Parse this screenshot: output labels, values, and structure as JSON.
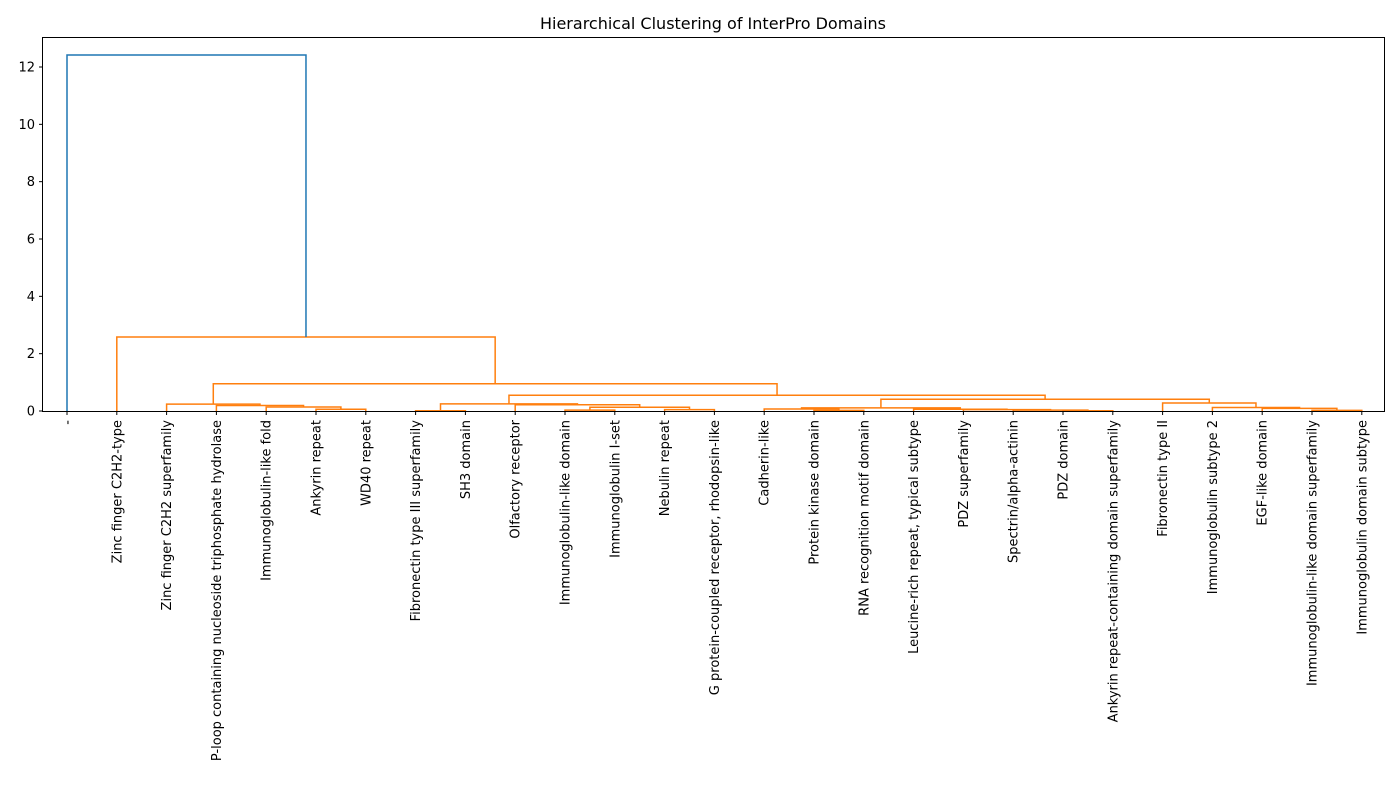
{
  "chart_data": {
    "type": "dendrogram",
    "title": "Hierarchical Clustering of InterPro Domains",
    "xlabel": "",
    "ylabel": "",
    "ylim": [
      0,
      13
    ],
    "y_ticks": [
      0,
      2,
      4,
      6,
      8,
      10,
      12
    ],
    "grid": false,
    "colors": {
      "root": "#1f77b4",
      "cluster": "#ff7f0e"
    },
    "leaves": [
      "-",
      "Zinc finger C2H2-type",
      "Zinc finger C2H2 superfamily",
      "P-loop containing nucleoside triphosphate hydrolase",
      "Immunoglobulin-like fold",
      "Ankyrin repeat",
      "WD40 repeat",
      "Fibronectin type III superfamily",
      "SH3 domain",
      "Olfactory receptor",
      "Immunoglobulin-like domain",
      "Immunoglobulin I-set",
      "Nebulin repeat",
      "G protein-coupled receptor, rhodopsin-like",
      "Cadherin-like",
      "Protein kinase domain",
      "RNA recognition motif domain",
      "Leucine-rich repeat, typical subtype",
      "PDZ superfamily",
      "Spectrin/alpha-actinin",
      "PDZ domain",
      "Ankyrin repeat-containing domain superfamily",
      "Fibronectin type II",
      "Immunoglobulin subtype 2",
      "EGF-like domain",
      "Immunoglobulin-like domain superfamily",
      "Immunoglobulin domain subtype"
    ],
    "merges": [
      {
        "left": "L5",
        "right": "L6",
        "height": 0.06,
        "color": "cluster"
      },
      {
        "left": "L4",
        "right": "M0",
        "height": 0.14,
        "color": "cluster"
      },
      {
        "left": "L3",
        "right": "M1",
        "height": 0.19,
        "color": "cluster"
      },
      {
        "left": "L2",
        "right": "M2",
        "height": 0.24,
        "color": "cluster"
      },
      {
        "left": "L7",
        "right": "L8",
        "height": 0.01,
        "color": "cluster"
      },
      {
        "left": "L10",
        "right": "L11",
        "height": 0.03,
        "color": "cluster"
      },
      {
        "left": "L12",
        "right": "L13",
        "height": 0.05,
        "color": "cluster"
      },
      {
        "left": "M5",
        "right": "M6",
        "height": 0.13,
        "color": "cluster"
      },
      {
        "left": "L9",
        "right": "M7",
        "height": 0.22,
        "color": "cluster"
      },
      {
        "left": "M4",
        "right": "M8",
        "height": 0.25,
        "color": "cluster"
      },
      {
        "left": "L15",
        "right": "L16",
        "height": 0.02,
        "color": "cluster"
      },
      {
        "left": "L14",
        "right": "M10",
        "height": 0.07,
        "color": "cluster"
      },
      {
        "left": "L20",
        "right": "L21",
        "height": 0.01,
        "color": "cluster"
      },
      {
        "left": "L19",
        "right": "M12",
        "height": 0.03,
        "color": "cluster"
      },
      {
        "left": "L18",
        "right": "M13",
        "height": 0.05,
        "color": "cluster"
      },
      {
        "left": "L17",
        "right": "M14",
        "height": 0.06,
        "color": "cluster"
      },
      {
        "left": "M11",
        "right": "M15",
        "height": 0.11,
        "color": "cluster"
      },
      {
        "left": "L25",
        "right": "L26",
        "height": 0.02,
        "color": "cluster"
      },
      {
        "left": "L24",
        "right": "M17",
        "height": 0.09,
        "color": "cluster"
      },
      {
        "left": "L23",
        "right": "M18",
        "height": 0.12,
        "color": "cluster"
      },
      {
        "left": "L22",
        "right": "M19",
        "height": 0.28,
        "color": "cluster"
      },
      {
        "left": "M16",
        "right": "M20",
        "height": 0.41,
        "color": "cluster"
      },
      {
        "left": "M9",
        "right": "M21",
        "height": 0.55,
        "color": "cluster"
      },
      {
        "left": "M3",
        "right": "M22",
        "height": 0.95,
        "color": "cluster"
      },
      {
        "left": "L1",
        "right": "M23",
        "height": 2.58,
        "color": "cluster"
      },
      {
        "left": "L0",
        "right": "M24",
        "height": 12.42,
        "color": "root"
      }
    ]
  }
}
